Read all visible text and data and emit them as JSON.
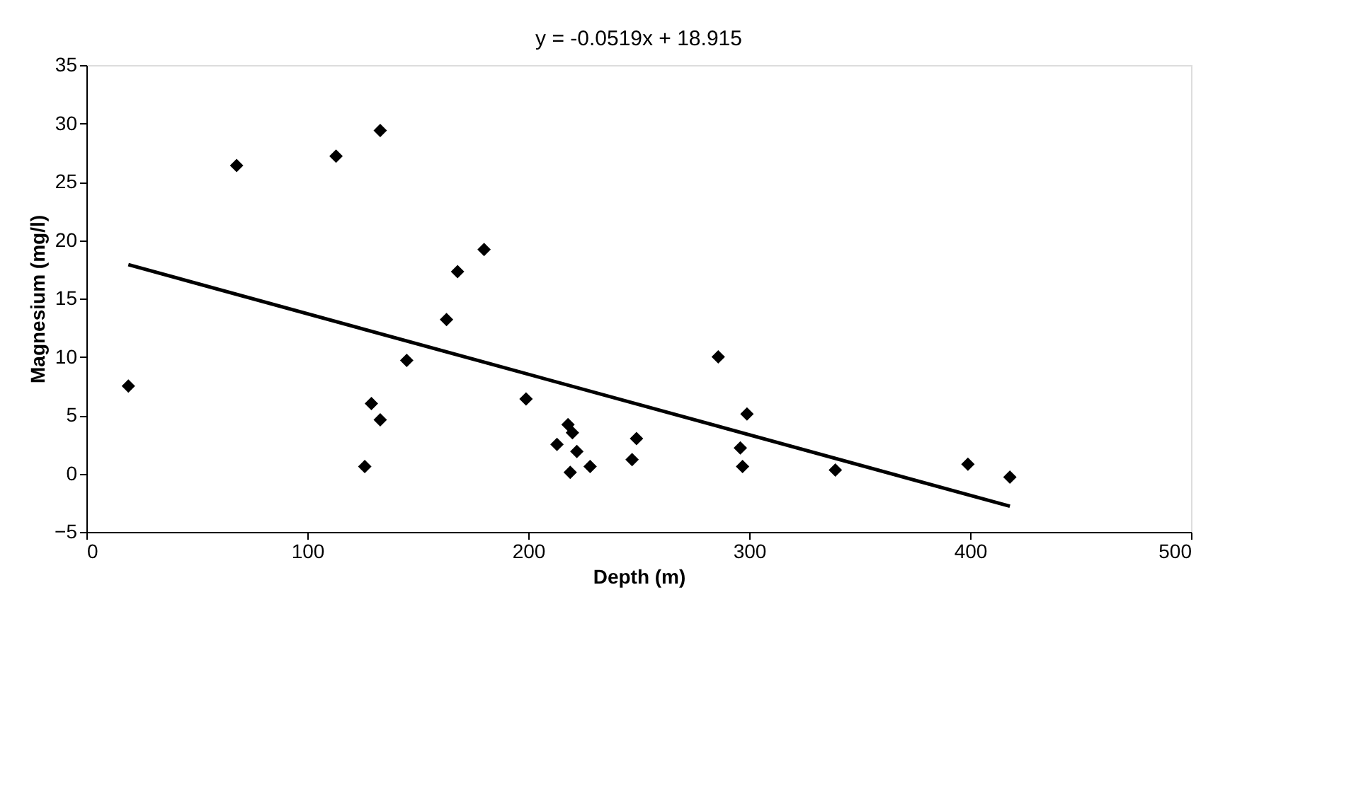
{
  "chart_data": {
    "type": "scatter",
    "xlabel": "Depth (m)",
    "ylabel": "Magnesium (mg/l)",
    "annotations": [
      "y = -0.0519x + 18.915"
    ],
    "xlim": [
      0,
      500
    ],
    "xticks": [
      0,
      100,
      200,
      300,
      400,
      500
    ],
    "ylim": [
      -5,
      35
    ],
    "yticks": [
      -5,
      0,
      5,
      10,
      15,
      20,
      25,
      30,
      35
    ],
    "grid": false,
    "series": [
      {
        "color": "#000000",
        "marker": "diamond",
        "x": [
          19,
          68,
          113,
          133,
          145,
          163,
          168,
          180,
          129,
          133,
          126,
          199,
          213,
          218,
          220,
          222,
          219,
          228,
          247,
          249,
          286,
          299,
          296,
          297,
          339,
          399,
          418
        ],
        "values": [
          7.5,
          26.4,
          27.2,
          29.4,
          9.7,
          13.2,
          17.3,
          19.2,
          6.0,
          4.6,
          0.6,
          6.4,
          2.5,
          4.2,
          3.5,
          1.9,
          0.1,
          0.6,
          1.2,
          3.0,
          10.0,
          5.1,
          2.2,
          0.6,
          0.3,
          0.8,
          -0.3
        ]
      },
      {
        "type": "line",
        "color": "#000000",
        "line_style": "solid",
        "x": [
          19,
          418
        ],
        "values": [
          17.9,
          -2.8
        ]
      }
    ]
  }
}
